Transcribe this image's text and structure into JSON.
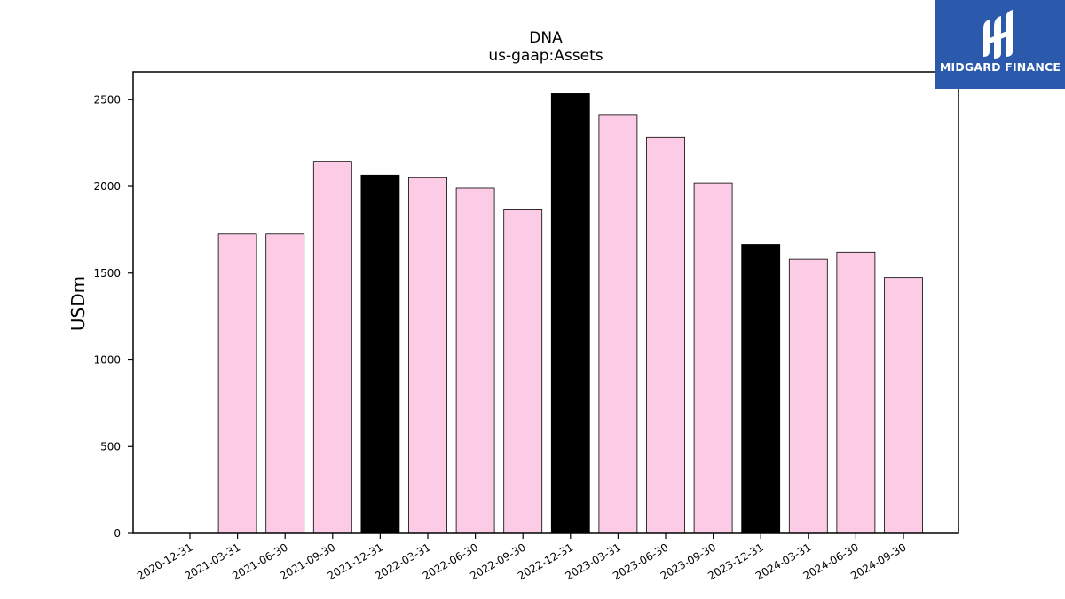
{
  "chart_data": {
    "type": "bar",
    "title": "DNA",
    "subtitle": "us-gaap:Assets",
    "xlabel": "",
    "ylabel": "USDm",
    "ylim": [
      0,
      2660
    ],
    "yticks": [
      0,
      500,
      1000,
      1500,
      2000,
      2500
    ],
    "grid": false,
    "categories": [
      "2020-12-31",
      "2021-03-31",
      "2021-06-30",
      "2021-09-30",
      "2021-12-31",
      "2022-03-31",
      "2022-06-30",
      "2022-09-30",
      "2022-12-31",
      "2023-03-31",
      "2023-06-30",
      "2023-09-30",
      "2023-12-31",
      "2024-03-31",
      "2024-06-30",
      "2024-09-30"
    ],
    "values": [
      0,
      1725,
      1725,
      2145,
      2065,
      2050,
      1990,
      1865,
      2535,
      2410,
      2285,
      2020,
      1665,
      1580,
      1620,
      1475
    ],
    "bar_colors": [
      "#fccbe6",
      "#fccbe6",
      "#fccbe6",
      "#fccbe6",
      "#000000",
      "#fccbe6",
      "#fccbe6",
      "#fccbe6",
      "#000000",
      "#fccbe6",
      "#fccbe6",
      "#fccbe6",
      "#000000",
      "#fccbe6",
      "#fccbe6",
      "#fccbe6"
    ]
  },
  "logo": {
    "text": "MIDGARD FINANCE",
    "background": "#2b5aad"
  }
}
